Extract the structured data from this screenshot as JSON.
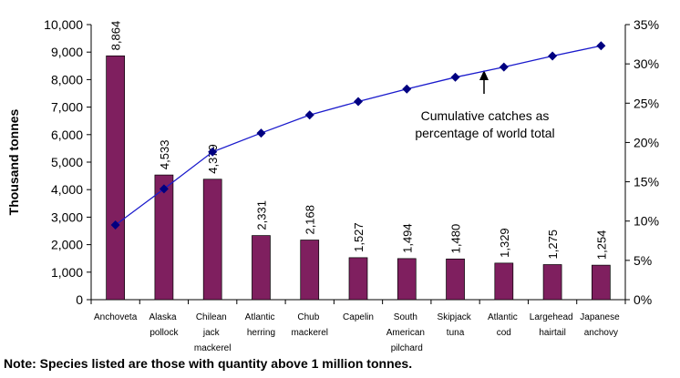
{
  "chart_data": {
    "type": "bar",
    "categories": [
      "Anchoveta",
      "Alaska pollock",
      "Chilean jack mackerel",
      "Atlantic herring",
      "Chub mackerel",
      "Capelin",
      "South American pilchard",
      "Skipjack tuna",
      "Atlantic cod",
      "Largehead hairtail",
      "Japanese anchovy"
    ],
    "series": [
      {
        "type": "bar",
        "color": "#7f1f5f",
        "values": [
          8864,
          4533,
          4379,
          2331,
          2168,
          1527,
          1494,
          1480,
          1329,
          1275,
          1254
        ],
        "value_labels": [
          "8,864",
          "4,533",
          "4,379",
          "2,331",
          "2,168",
          "1,527",
          "1,494",
          "1,480",
          "1,329",
          "1,275",
          "1,254"
        ]
      },
      {
        "type": "line",
        "axis": "y2",
        "color": "#1a1acc",
        "marker_color": "#000080",
        "values": [
          9.5,
          14.1,
          18.8,
          21.2,
          23.5,
          25.2,
          26.8,
          28.3,
          29.6,
          31.0,
          32.3
        ]
      }
    ],
    "ylabel": "Thousand tonnes",
    "ylim": [
      0,
      10000
    ],
    "yticks": [
      0,
      {
        "value": 1000,
        "label": "1,000"
      },
      {
        "value": 2000,
        "label": "2,000"
      },
      {
        "value": 3000,
        "label": "3,000"
      },
      {
        "value": 4000,
        "label": "4,000"
      },
      {
        "value": 5000,
        "label": "5,000"
      },
      {
        "value": 6000,
        "label": "6,000"
      },
      {
        "value": 7000,
        "label": "7,000"
      },
      {
        "value": 8000,
        "label": "8,000"
      },
      {
        "value": 9000,
        "label": "9,000"
      },
      {
        "value": 10000,
        "label": "10,000"
      }
    ],
    "y2lim": [
      0,
      35
    ],
    "y2ticks": [
      {
        "value": 0,
        "label": "0%"
      },
      {
        "value": 5,
        "label": "5%"
      },
      {
        "value": 10,
        "label": "10%"
      },
      {
        "value": 15,
        "label": "15%"
      },
      {
        "value": 20,
        "label": "20%"
      },
      {
        "value": 25,
        "label": "25%"
      },
      {
        "value": 30,
        "label": "30%"
      },
      {
        "value": 35,
        "label": "35%"
      }
    ],
    "annotation": [
      "Cumulative catches as",
      "percentage of world total"
    ],
    "note": "Note: Species listed are those with quantity above 1 million tonnes."
  }
}
